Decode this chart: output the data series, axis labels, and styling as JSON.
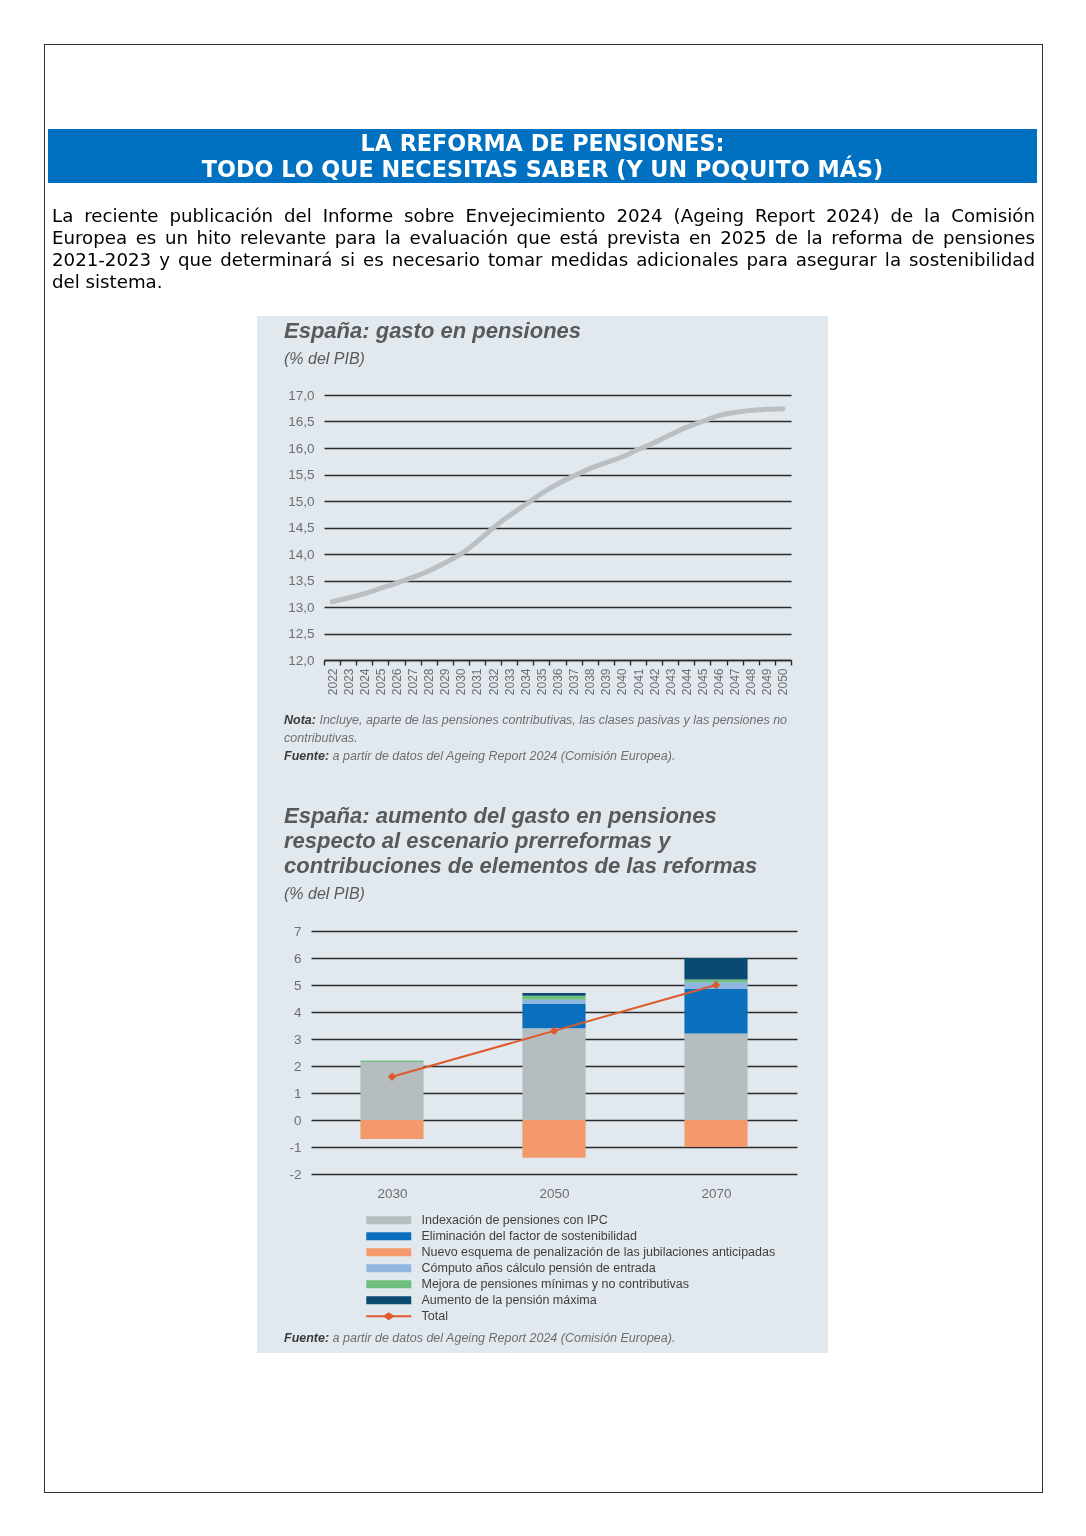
{
  "chart_data": [
    {
      "type": "other",
      "title": "LA REFORMA DE PENSIONES:",
      "subtitle": "TODO LO QUE NECESITAS SABER (Y UN POQUITO MÁS)",
      "annotations": [
        "La reciente publicación del Informe sobre Envejecimiento 2024 (Ageing Report 2024) de la Comisión Europea es un hito relevante para la evaluación que está prevista en 2025 de la reforma de pensiones 2021-2023 y que determinará si es necesario tomar medidas adicionales para asegurar la sostenibilidad del sistema."
      ]
    },
    {
      "type": "line",
      "title": "España: gasto en pensiones",
      "subtitle": "(% del PIB)",
      "categories": [
        "2022",
        "2023",
        "2024",
        "2025",
        "2026",
        "2027",
        "2028",
        "2029",
        "2030",
        "2031",
        "2032",
        "2033",
        "2034",
        "2035",
        "2036",
        "2037",
        "2038",
        "2039",
        "2040",
        "2041",
        "2042",
        "2043",
        "2044",
        "2045",
        "2046",
        "2047",
        "2048",
        "2049",
        "2050"
      ],
      "series": [
        {
          "color": "#babfc3",
          "values": [
            13.1,
            13.17,
            13.25,
            13.35,
            13.45,
            13.56,
            13.68,
            13.83,
            14.0,
            14.23,
            14.49,
            14.72,
            14.93,
            15.14,
            15.32,
            15.47,
            15.61,
            15.72,
            15.83,
            15.97,
            16.1,
            16.25,
            16.39,
            16.5,
            16.61,
            16.67,
            16.71,
            16.73,
            16.74
          ]
        }
      ],
      "ylim": [
        12,
        17
      ],
      "yticks": [
        {
          "value": 12,
          "label": "12,0"
        },
        {
          "value": 12.5,
          "label": "12,5"
        },
        {
          "value": 13,
          "label": "13,0"
        },
        {
          "value": 13.5,
          "label": "13,5"
        },
        {
          "value": 14,
          "label": "14,0"
        },
        {
          "value": 14.5,
          "label": "14,5"
        },
        {
          "value": 15,
          "label": "15,0"
        },
        {
          "value": 15.5,
          "label": "15,5"
        },
        {
          "value": 16,
          "label": "16,0"
        },
        {
          "value": 16.5,
          "label": "16,5"
        },
        {
          "value": 17,
          "label": "17,0"
        }
      ],
      "grid": "y",
      "annotations": [
        "Nota: Incluye, aparte de las pensiones contributivas, las clases pasivas y las pensiones no contributivas.",
        "Fuente: a partir de datos del Ageing Report 2024 (Comisión Europea)."
      ]
    },
    {
      "type": "bar",
      "title": "España: aumento del gasto en pensiones respecto al escenario prerreformas y contribuciones de elementos de las reformas",
      "subtitle": "(% del PIB)",
      "categories": [
        "2030",
        "2050",
        "2070"
      ],
      "stacked": true,
      "series": [
        {
          "name": "Indexación de pensiones con IPC",
          "color": "#b5bdc1",
          "values": [
            2.15,
            3.4,
            3.2
          ]
        },
        {
          "name": "Eliminación del factor de sostenibilidad",
          "color": "#0a70bd",
          "values": [
            null,
            0.9,
            1.65
          ]
        },
        {
          "name": "Nuevo esquema de penalización de las jubilaciones anticipadas",
          "color": "#f3996b",
          "values": [
            -0.7,
            -1.4,
            -1.0
          ]
        },
        {
          "name": "Cómputo años cálculo pensión de entrada",
          "color": "#8fb6e0",
          "values": [
            null,
            0.15,
            0.25
          ]
        },
        {
          "name": "Mejora de pensiones mínimas y no contributivas",
          "color": "#6fbf7f",
          "values": [
            0.05,
            0.15,
            0.1
          ]
        },
        {
          "name": "Aumento de la pensión máxima",
          "color": "#0b4a70",
          "values": [
            null,
            0.1,
            0.8
          ]
        },
        {
          "name": "Total",
          "type": "line",
          "color": "#dc5a2c",
          "values": [
            1.6,
            3.3,
            5.0
          ]
        }
      ],
      "ylim": [
        -2,
        7
      ],
      "yticks": [
        -2,
        -1,
        0,
        1,
        2,
        3,
        4,
        5,
        6,
        7
      ],
      "grid": "y",
      "legend": "bottom",
      "marker": "diamond",
      "annotations": [
        "Fuente: a partir de datos del Ageing Report 2024 (Comisión Europea)."
      ]
    }
  ]
}
